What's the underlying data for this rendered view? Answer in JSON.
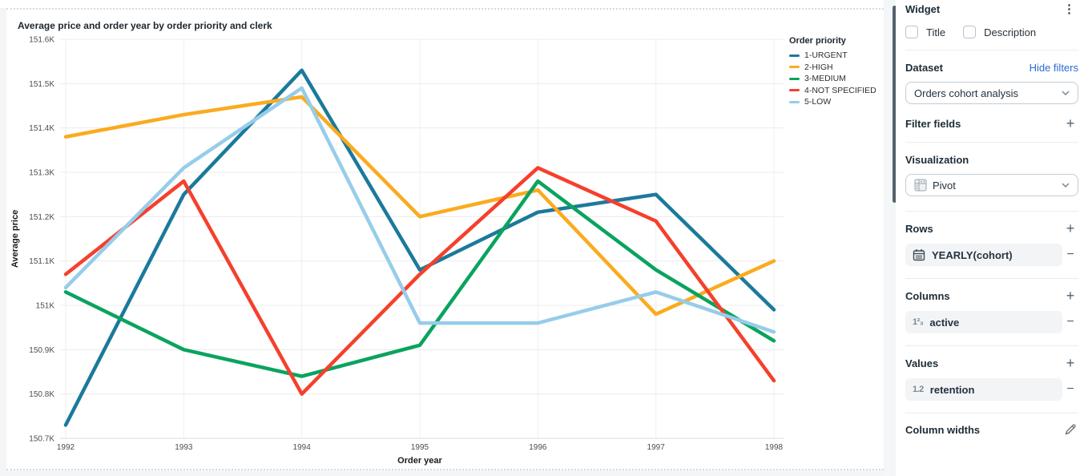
{
  "chart_data": {
    "type": "line",
    "title": "Average price and order year by order priority and clerk",
    "xlabel": "Order year",
    "ylabel": "Average price",
    "x": [
      "1992",
      "1993",
      "1994",
      "1995",
      "1996",
      "1997",
      "1998"
    ],
    "ylim": [
      150.7,
      151.6
    ],
    "grid": true,
    "legend_title": "Order priority",
    "legend_position": "top-right",
    "y_ticks": [
      {
        "value": 151.6,
        "label": "151.6K"
      },
      {
        "value": 151.5,
        "label": "151.5K"
      },
      {
        "value": 151.4,
        "label": "151.4K"
      },
      {
        "value": 151.3,
        "label": "151.3K"
      },
      {
        "value": 151.2,
        "label": "151.2K"
      },
      {
        "value": 151.1,
        "label": "151.1K"
      },
      {
        "value": 151.0,
        "label": "151K"
      },
      {
        "value": 150.9,
        "label": "150.9K"
      },
      {
        "value": 150.8,
        "label": "150.8K"
      },
      {
        "value": 150.7,
        "label": "150.7K"
      }
    ],
    "unit": "K",
    "series": [
      {
        "name": "1-URGENT",
        "color": "#1b7a9b",
        "values": [
          150.73,
          151.25,
          151.53,
          151.08,
          151.21,
          151.25,
          150.99
        ]
      },
      {
        "name": "2-HIGH",
        "color": "#faab1e",
        "values": [
          151.38,
          151.43,
          151.47,
          151.2,
          151.26,
          150.98,
          151.1
        ]
      },
      {
        "name": "3-MEDIUM",
        "color": "#0aa35f",
        "values": [
          151.03,
          150.9,
          150.84,
          150.91,
          151.28,
          151.08,
          150.92
        ]
      },
      {
        "name": "4-NOT SPECIFIED",
        "color": "#f5402c",
        "values": [
          151.07,
          151.28,
          150.8,
          151.07,
          151.31,
          151.19,
          150.83
        ]
      },
      {
        "name": "5-LOW",
        "color": "#97ccea",
        "values": [
          151.04,
          151.31,
          151.49,
          150.96,
          150.96,
          151.03,
          150.94
        ]
      }
    ]
  },
  "panel": {
    "widget": {
      "label": "Widget"
    },
    "checkboxes": {
      "title_label": "Title",
      "title_checked": false,
      "description_label": "Description",
      "description_checked": false
    },
    "dataset": {
      "label": "Dataset",
      "link": "Hide filters",
      "selected": "Orders cohort analysis"
    },
    "filter_fields": {
      "label": "Filter fields"
    },
    "visualization": {
      "label": "Visualization",
      "selected": "Pivot"
    },
    "rows": {
      "label": "Rows",
      "field": "YEARLY(cohort)"
    },
    "columns": {
      "label": "Columns",
      "field": "active",
      "icon_text": "1²₃"
    },
    "values": {
      "label": "Values",
      "field": "retention",
      "icon_text": "1.2"
    },
    "column_widths": {
      "label": "Column widths"
    }
  }
}
